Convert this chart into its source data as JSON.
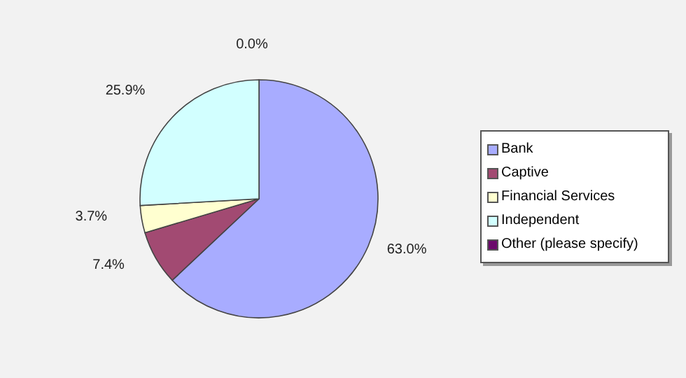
{
  "chart_data": {
    "type": "pie",
    "categories": [
      "Bank",
      "Captive",
      "Financial Services",
      "Independent",
      "Other (please specify)"
    ],
    "values": [
      63.0,
      7.4,
      3.7,
      25.9,
      0.0
    ],
    "colors": [
      "#a8acff",
      "#a24a72",
      "#ffffd0",
      "#d2ffff",
      "#6b0a6b"
    ],
    "value_labels": [
      "63.0%",
      "7.4%",
      "3.7%",
      "25.9%",
      "0.0%"
    ],
    "legend": "right"
  }
}
